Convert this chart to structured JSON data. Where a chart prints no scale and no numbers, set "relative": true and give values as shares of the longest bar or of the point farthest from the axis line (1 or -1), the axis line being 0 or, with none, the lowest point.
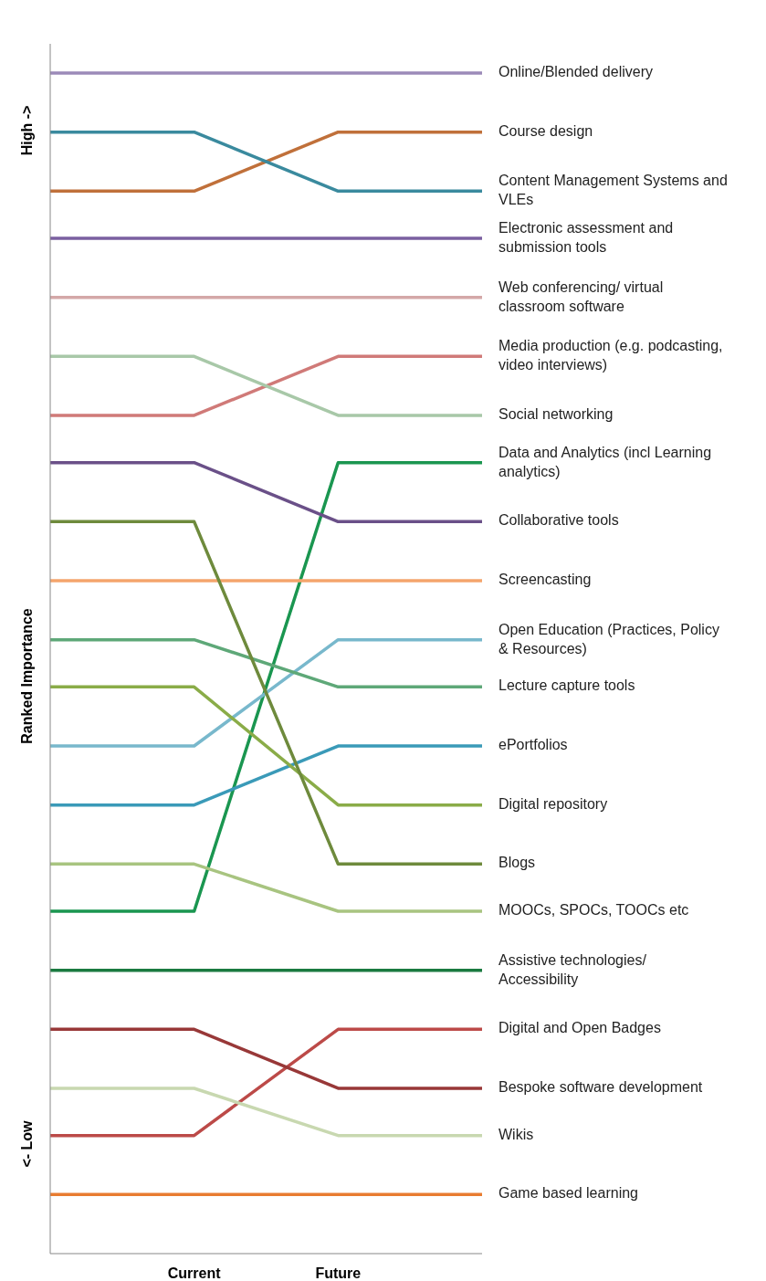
{
  "chart_data": {
    "type": "line",
    "relative": true,
    "ylabel": "Ranked Importance",
    "annotations": [
      "High ->",
      "<- Low"
    ],
    "categories": [
      null,
      "Current",
      "Future",
      null
    ],
    "line_style": "solid",
    "marker": "none",
    "series": [
      {
        "name": "Online/Blended delivery",
        "color": "#9b8ab8",
        "values": [
          1,
          1,
          1,
          1
        ]
      },
      {
        "name": "Course design",
        "color": "#c0703a",
        "values": [
          0.9,
          0.9,
          0.95,
          0.95
        ]
      },
      {
        "name": "Content Management Systems and VLEs",
        "color": "#3a8a9e",
        "values": [
          0.95,
          0.95,
          0.9,
          0.9
        ]
      },
      {
        "name": "Electronic assessment and submission tools",
        "color": "#7a5fa0",
        "values": [
          0.86,
          0.86,
          0.86,
          0.86
        ]
      },
      {
        "name": "Web conferencing/ virtual classroom software",
        "color": "#d4a8a8",
        "values": [
          0.81,
          0.81,
          0.81,
          0.81
        ]
      },
      {
        "name": "Media production (e.g. podcasting, video interviews)",
        "color": "#d07a78",
        "values": [
          0.71,
          0.71,
          0.76,
          0.76
        ]
      },
      {
        "name": "Social networking",
        "color": "#a8c8a8",
        "values": [
          0.76,
          0.76,
          0.71,
          0.71
        ]
      },
      {
        "name": "Data and Analytics (incl Learning analytics)",
        "color": "#1a9650",
        "values": [
          0.29,
          0.29,
          0.67,
          0.67
        ]
      },
      {
        "name": "Collaborative tools",
        "color": "#6a5088",
        "values": [
          0.67,
          0.67,
          0.62,
          0.62
        ]
      },
      {
        "name": "Screencasting",
        "color": "#f4a46c",
        "values": [
          0.57,
          0.57,
          0.57,
          0.57
        ]
      },
      {
        "name": "Open Education (Practices, Policy & Resources)",
        "color": "#78b8cc",
        "values": [
          0.43,
          0.43,
          0.52,
          0.52
        ]
      },
      {
        "name": "Lecture capture tools",
        "color": "#5ea878",
        "values": [
          0.52,
          0.52,
          0.48,
          0.48
        ]
      },
      {
        "name": "ePortfolios",
        "color": "#3a9ab8",
        "values": [
          0.38,
          0.38,
          0.43,
          0.43
        ]
      },
      {
        "name": "Digital repository",
        "color": "#8aac48",
        "values": [
          0.48,
          0.48,
          0.38,
          0.38
        ]
      },
      {
        "name": "Blogs",
        "color": "#6e8a3c",
        "values": [
          0.62,
          0.62,
          0.33,
          0.33
        ]
      },
      {
        "name": "MOOCs, SPOCs, TOOCs etc",
        "color": "#a8c480",
        "values": [
          0.33,
          0.33,
          0.29,
          0.29
        ]
      },
      {
        "name": "Assistive technologies/ Accessibility",
        "color": "#1a7a40",
        "values": [
          0.24,
          0.24,
          0.24,
          0.24
        ]
      },
      {
        "name": "Digital and Open Badges",
        "color": "#bc4a48",
        "values": [
          0.1,
          0.1,
          0.19,
          0.19
        ]
      },
      {
        "name": "Bespoke software development",
        "color": "#983838",
        "values": [
          0.19,
          0.19,
          0.14,
          0.14
        ]
      },
      {
        "name": "Wikis",
        "color": "#c8d8b0",
        "values": [
          0.14,
          0.14,
          0.1,
          0.1
        ]
      },
      {
        "name": "Game based learning",
        "color": "#e87c30",
        "values": [
          0.05,
          0.05,
          0.05,
          0.05
        ]
      }
    ]
  }
}
